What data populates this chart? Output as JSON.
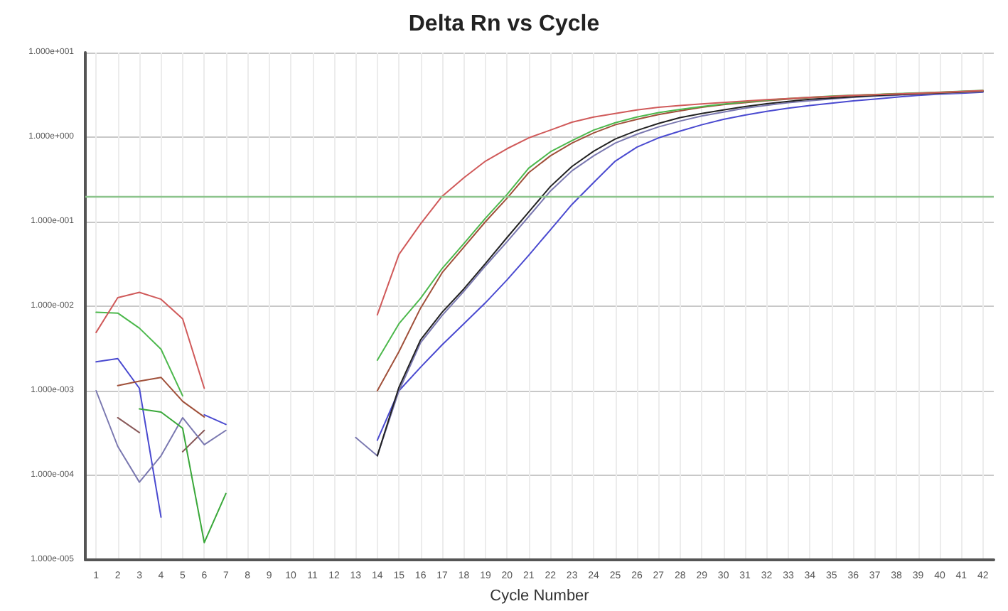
{
  "chart_data": {
    "type": "line",
    "title": "Delta Rn vs Cycle",
    "xlabel": "Cycle Number",
    "log": true,
    "grid": true,
    "marker": "none",
    "line_style": "solid",
    "x": [
      1,
      2,
      3,
      4,
      5,
      6,
      7,
      8,
      9,
      10,
      11,
      12,
      13,
      14,
      15,
      16,
      17,
      18,
      19,
      20,
      21,
      22,
      23,
      24,
      25,
      26,
      27,
      28,
      29,
      30,
      31,
      32,
      33,
      34,
      35,
      36,
      37,
      38,
      39,
      40,
      41,
      42
    ],
    "xlim": [
      0.5,
      42.5
    ],
    "xticks": [
      1,
      2,
      3,
      4,
      5,
      6,
      7,
      8,
      9,
      10,
      11,
      12,
      13,
      14,
      15,
      16,
      17,
      18,
      19,
      20,
      21,
      22,
      23,
      24,
      25,
      26,
      27,
      28,
      29,
      30,
      31,
      32,
      33,
      34,
      35,
      36,
      37,
      38,
      39,
      40,
      41,
      42
    ],
    "ylim": [
      1e-05,
      10
    ],
    "yticks": [
      {
        "value": 1e-05,
        "label": "1.000e-005"
      },
      {
        "value": 0.0001,
        "label": "1.000e-004"
      },
      {
        "value": 0.001,
        "label": "1.000e-003"
      },
      {
        "value": 0.01,
        "label": "1.000e-002"
      },
      {
        "value": 0.1,
        "label": "1.000e-001"
      },
      {
        "value": 1,
        "label": "1.000e+000"
      },
      {
        "value": 10,
        "label": "1.000e+001"
      }
    ],
    "ref_lines": [
      {
        "axis": "y",
        "value": 0.2,
        "label": null,
        "color": "#8cc48c"
      }
    ],
    "series": [
      {
        "color": "#d05a5a",
        "values": [
          0.0049,
          0.0126,
          0.0146,
          0.0121,
          0.0071,
          0.00107,
          null,
          null,
          null,
          null,
          null,
          null,
          null,
          0.0079,
          0.041,
          0.094,
          0.2,
          0.33,
          0.52,
          0.73,
          0.98,
          1.21,
          1.5,
          1.73,
          1.9,
          2.1,
          2.25,
          2.37,
          2.47,
          2.57,
          2.67,
          2.77,
          2.86,
          2.95,
          3.03,
          3.12,
          3.18,
          3.24,
          3.3,
          3.38,
          3.46,
          3.55
        ]
      },
      {
        "color": "#4cb84c",
        "values": [
          0.0085,
          0.0083,
          0.0055,
          0.0031,
          0.00087,
          null,
          null,
          null,
          null,
          null,
          null,
          null,
          null,
          0.0023,
          0.0062,
          0.0124,
          0.028,
          0.055,
          0.11,
          0.21,
          0.43,
          0.67,
          0.91,
          1.21,
          1.48,
          1.73,
          1.95,
          2.13,
          2.3,
          2.46,
          2.6,
          2.74,
          2.86,
          2.96,
          3.05,
          3.13,
          3.2,
          3.27,
          3.33,
          3.4,
          3.48,
          3.57
        ]
      },
      {
        "color": "#3aa83a",
        "values": [
          null,
          null,
          0.00061,
          0.00056,
          0.00036,
          1.6e-05,
          6.1e-05,
          null,
          null,
          null,
          null,
          null,
          null,
          null,
          null,
          null,
          null,
          null,
          null,
          null,
          null,
          null,
          null,
          null,
          null,
          null,
          null,
          null,
          null,
          null,
          null,
          null,
          null,
          null,
          null,
          null,
          null,
          null,
          null,
          null,
          null,
          null
        ]
      },
      {
        "color": "#a0503a",
        "values": [
          null,
          0.00115,
          0.0013,
          0.00144,
          0.00075,
          0.00049,
          null,
          null,
          null,
          null,
          null,
          null,
          null,
          0.001,
          0.0029,
          0.0095,
          0.025,
          0.05,
          0.1,
          0.19,
          0.38,
          0.6,
          0.85,
          1.12,
          1.4,
          1.62,
          1.85,
          2.05,
          2.25,
          2.42,
          2.56,
          2.7,
          2.82,
          2.93,
          3.02,
          3.1,
          3.17,
          3.24,
          3.3,
          3.37,
          3.45,
          3.53
        ]
      },
      {
        "color": "#222222",
        "values": [
          null,
          null,
          null,
          null,
          null,
          null,
          null,
          null,
          null,
          null,
          null,
          null,
          null,
          0.00017,
          0.0011,
          0.004,
          0.0085,
          0.016,
          0.032,
          0.065,
          0.13,
          0.26,
          0.45,
          0.68,
          0.95,
          1.2,
          1.45,
          1.7,
          1.9,
          2.1,
          2.3,
          2.48,
          2.65,
          2.8,
          2.9,
          3.0,
          3.1,
          3.18,
          3.25,
          3.33,
          3.42,
          3.5
        ]
      },
      {
        "color": "#7a78b0",
        "values": [
          0.001,
          0.00022,
          8.3e-05,
          0.00017,
          0.00048,
          0.00023,
          0.00034,
          null,
          null,
          null,
          null,
          null,
          0.00028,
          0.00017,
          0.001,
          0.0037,
          0.0078,
          0.015,
          0.03,
          0.058,
          0.115,
          0.23,
          0.4,
          0.6,
          0.85,
          1.08,
          1.32,
          1.55,
          1.78,
          1.98,
          2.2,
          2.38,
          2.55,
          2.7,
          2.83,
          2.95,
          3.05,
          3.13,
          3.2,
          3.28,
          3.37,
          3.45
        ]
      },
      {
        "color": "#4a4ad0",
        "values": [
          0.0022,
          0.0024,
          0.00107,
          3.2e-05,
          null,
          0.00052,
          0.0004,
          null,
          null,
          null,
          null,
          null,
          null,
          0.00026,
          0.001,
          0.0019,
          0.0035,
          0.0062,
          0.011,
          0.0205,
          0.04,
          0.08,
          0.16,
          0.29,
          0.52,
          0.76,
          0.98,
          1.18,
          1.4,
          1.62,
          1.82,
          2.02,
          2.2,
          2.37,
          2.52,
          2.68,
          2.82,
          2.97,
          3.12,
          3.22,
          3.31,
          3.4
        ]
      },
      {
        "color": "#8a5a5a",
        "values": [
          null,
          0.00048,
          0.00032,
          null,
          0.00019,
          0.00034,
          null,
          null,
          null,
          null,
          null,
          null,
          null,
          null,
          null,
          null,
          null,
          null,
          null,
          null,
          null,
          null,
          null,
          null,
          null,
          null,
          null,
          null,
          null,
          null,
          null,
          null,
          null,
          null,
          null,
          null,
          null,
          null,
          null,
          null,
          null,
          null
        ]
      }
    ]
  }
}
